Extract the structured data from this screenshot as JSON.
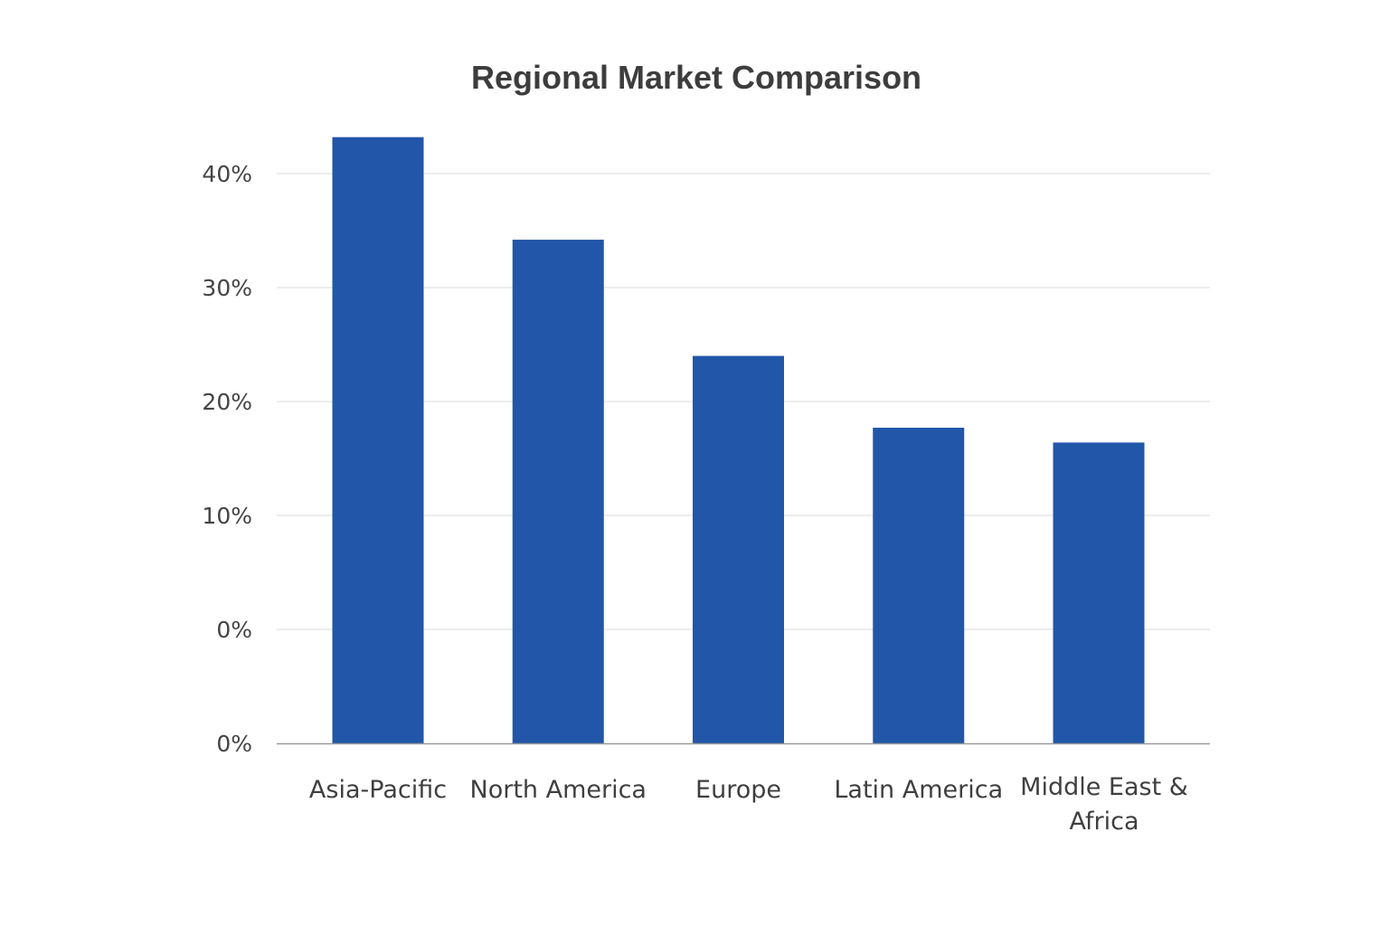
{
  "chart_data": {
    "type": "bar",
    "title": "Regional Market Comparison",
    "xlabel": "",
    "ylabel": "",
    "categories": [
      "Asia-Pacific",
      "North America",
      "Europe",
      "Latin America",
      "Middle East & Africa"
    ],
    "values": [
      43.2,
      34.2,
      24.0,
      17.7,
      16.4
    ],
    "y_tick_labels": [
      "0%",
      "0%",
      "10%",
      "20%",
      "30%",
      "40%"
    ],
    "ylim": [
      -10,
      40
    ],
    "grid": true,
    "legend": "none",
    "bar_color": "#2156a8"
  }
}
